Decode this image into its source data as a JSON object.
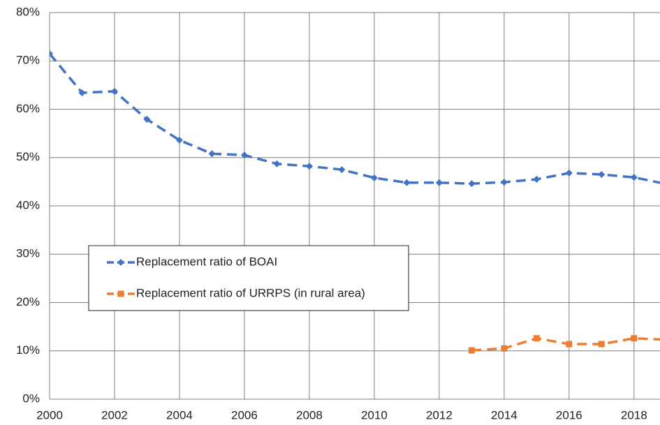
{
  "chart_data": {
    "type": "line",
    "x": [
      2000,
      2001,
      2002,
      2003,
      2004,
      2005,
      2006,
      2007,
      2008,
      2009,
      2010,
      2011,
      2012,
      2013,
      2014,
      2015,
      2016,
      2017,
      2018,
      2019
    ],
    "series": [
      {
        "name": "Replacement ratio of BOAI",
        "color": "#4472c4",
        "marker": "diamond",
        "values": [
          71.5,
          63.4,
          63.7,
          57.9,
          53.6,
          50.8,
          50.5,
          48.7,
          48.2,
          47.5,
          45.8,
          44.8,
          44.8,
          44.6,
          44.9,
          45.5,
          46.8,
          46.5,
          45.9,
          44.5
        ]
      },
      {
        "name": "Replacement ratio of URRPS (in rural area)",
        "color": "#ed7d31",
        "marker": "square",
        "values": [
          null,
          null,
          null,
          null,
          null,
          null,
          null,
          null,
          null,
          null,
          null,
          null,
          null,
          10.1,
          10.5,
          12.6,
          11.4,
          11.4,
          12.6,
          12.3
        ]
      }
    ],
    "xlim": [
      2000,
      2018.8
    ],
    "xticks": [
      2000,
      2002,
      2004,
      2006,
      2008,
      2010,
      2012,
      2014,
      2016,
      2018
    ],
    "ylim": [
      0,
      80
    ],
    "yticks": [
      {
        "value": 0,
        "label": "0%"
      },
      {
        "value": 10,
        "label": "10%"
      },
      {
        "value": 20,
        "label": "20%"
      },
      {
        "value": 30,
        "label": "30%"
      },
      {
        "value": 40,
        "label": "40%"
      },
      {
        "value": 50,
        "label": "50%"
      },
      {
        "value": 60,
        "label": "60%"
      },
      {
        "value": 70,
        "label": "70%"
      },
      {
        "value": 80,
        "label": "80%"
      }
    ],
    "grid": true,
    "legend": "left"
  }
}
